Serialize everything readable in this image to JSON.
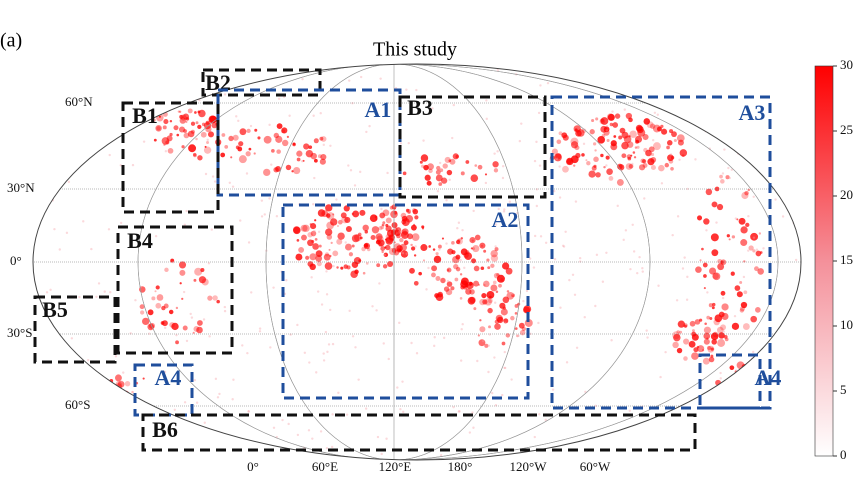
{
  "panel_label": "(a)",
  "title": "This study",
  "lat_labels": [
    "60°N",
    "30°N",
    "0°",
    "30°S",
    "60°S"
  ],
  "lon_labels": [
    "0°",
    "60°E",
    "120°E",
    "180°",
    "120°W",
    "60°W"
  ],
  "regions": [
    {
      "label": "B2",
      "color": "#111111"
    },
    {
      "label": "A1",
      "color": "#1f4e9c"
    },
    {
      "label": "B1",
      "color": "#111111"
    },
    {
      "label": "B3",
      "color": "#111111"
    },
    {
      "label": "A3",
      "color": "#1f4e9c"
    },
    {
      "label": "A2",
      "color": "#1f4e9c"
    },
    {
      "label": "B4",
      "color": "#111111"
    },
    {
      "label": "B5",
      "color": "#111111"
    },
    {
      "label": "A4",
      "color": "#1f4e9c"
    },
    {
      "label": "A4",
      "color": "#1f4e9c"
    },
    {
      "label": "B6",
      "color": "#111111"
    }
  ],
  "colorbar": {
    "lim": [
      0,
      30
    ],
    "ticks": [
      0,
      5,
      10,
      15,
      20,
      25,
      30
    ]
  }
}
